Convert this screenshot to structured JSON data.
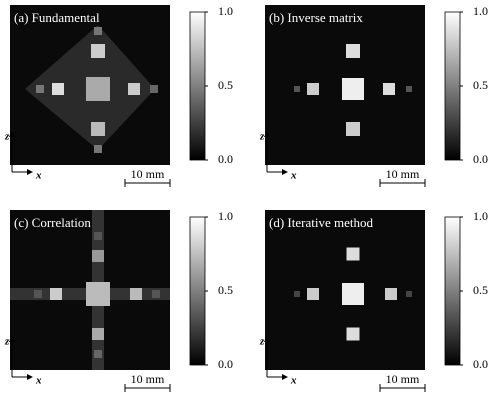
{
  "panels": [
    {
      "title": "(a) Fundamental",
      "colorbar": {
        "lim": [
          0,
          1
        ],
        "ticks": [
          {
            "value": 1,
            "label": "1.0"
          },
          0.5,
          {
            "value": 0,
            "label": "0.0"
          }
        ]
      },
      "axis_z": "z",
      "axis_x": "x",
      "scale_bar": "10 mm"
    },
    {
      "title": "(b) Inverse matrix",
      "colorbar": {
        "lim": [
          0,
          1
        ],
        "ticks": [
          {
            "value": 1,
            "label": "1.0"
          },
          0.5,
          {
            "value": 0,
            "label": "0.0"
          }
        ]
      },
      "axis_z": "z",
      "axis_x": "x",
      "scale_bar": "10 mm"
    },
    {
      "title": "(c) Correlation",
      "colorbar": {
        "lim": [
          0,
          1
        ],
        "ticks": [
          {
            "value": 1,
            "label": "1.0"
          },
          0.5,
          {
            "value": 0,
            "label": "0.0"
          }
        ]
      },
      "axis_z": "z",
      "axis_x": "x",
      "scale_bar": "10 mm"
    },
    {
      "title": "(d) Iterative method",
      "colorbar": {
        "lim": [
          0,
          1
        ],
        "ticks": [
          {
            "value": 1,
            "label": "1.0"
          },
          0.5,
          {
            "value": 0,
            "label": "0.0"
          }
        ]
      },
      "axis_z": "z",
      "axis_x": "x",
      "scale_bar": "10 mm"
    }
  ]
}
